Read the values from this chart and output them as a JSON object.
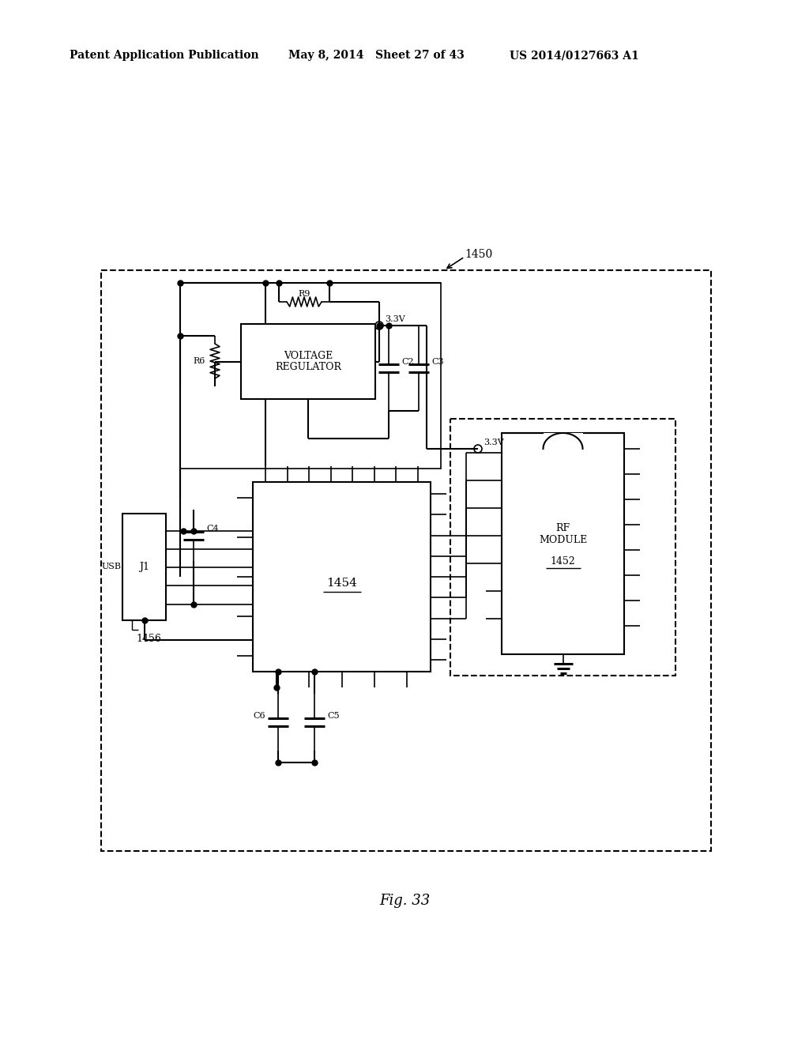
{
  "bg_color": "#ffffff",
  "header_left": "Patent Application Publication",
  "header_mid": "May 8, 2014   Sheet 27 of 43",
  "header_right": "US 2014/0127663 A1",
  "fig_label": "Fig. 33",
  "lbl_1450": "1450",
  "lbl_1452": "1452",
  "lbl_1454": "1454",
  "lbl_1456": "1456",
  "lbl_R9": "R9",
  "lbl_R6": "R6",
  "lbl_C2": "C2",
  "lbl_C3": "C3",
  "lbl_C4": "C4",
  "lbl_C5": "C5",
  "lbl_C6": "C6",
  "lbl_3V3a": "3.3V",
  "lbl_3V3b": "3.3V",
  "lbl_VR": "VOLTAGE\nREGULATOR",
  "lbl_RF": "RF\nMODULE",
  "lbl_USB": "USB",
  "lbl_J1": "J1"
}
